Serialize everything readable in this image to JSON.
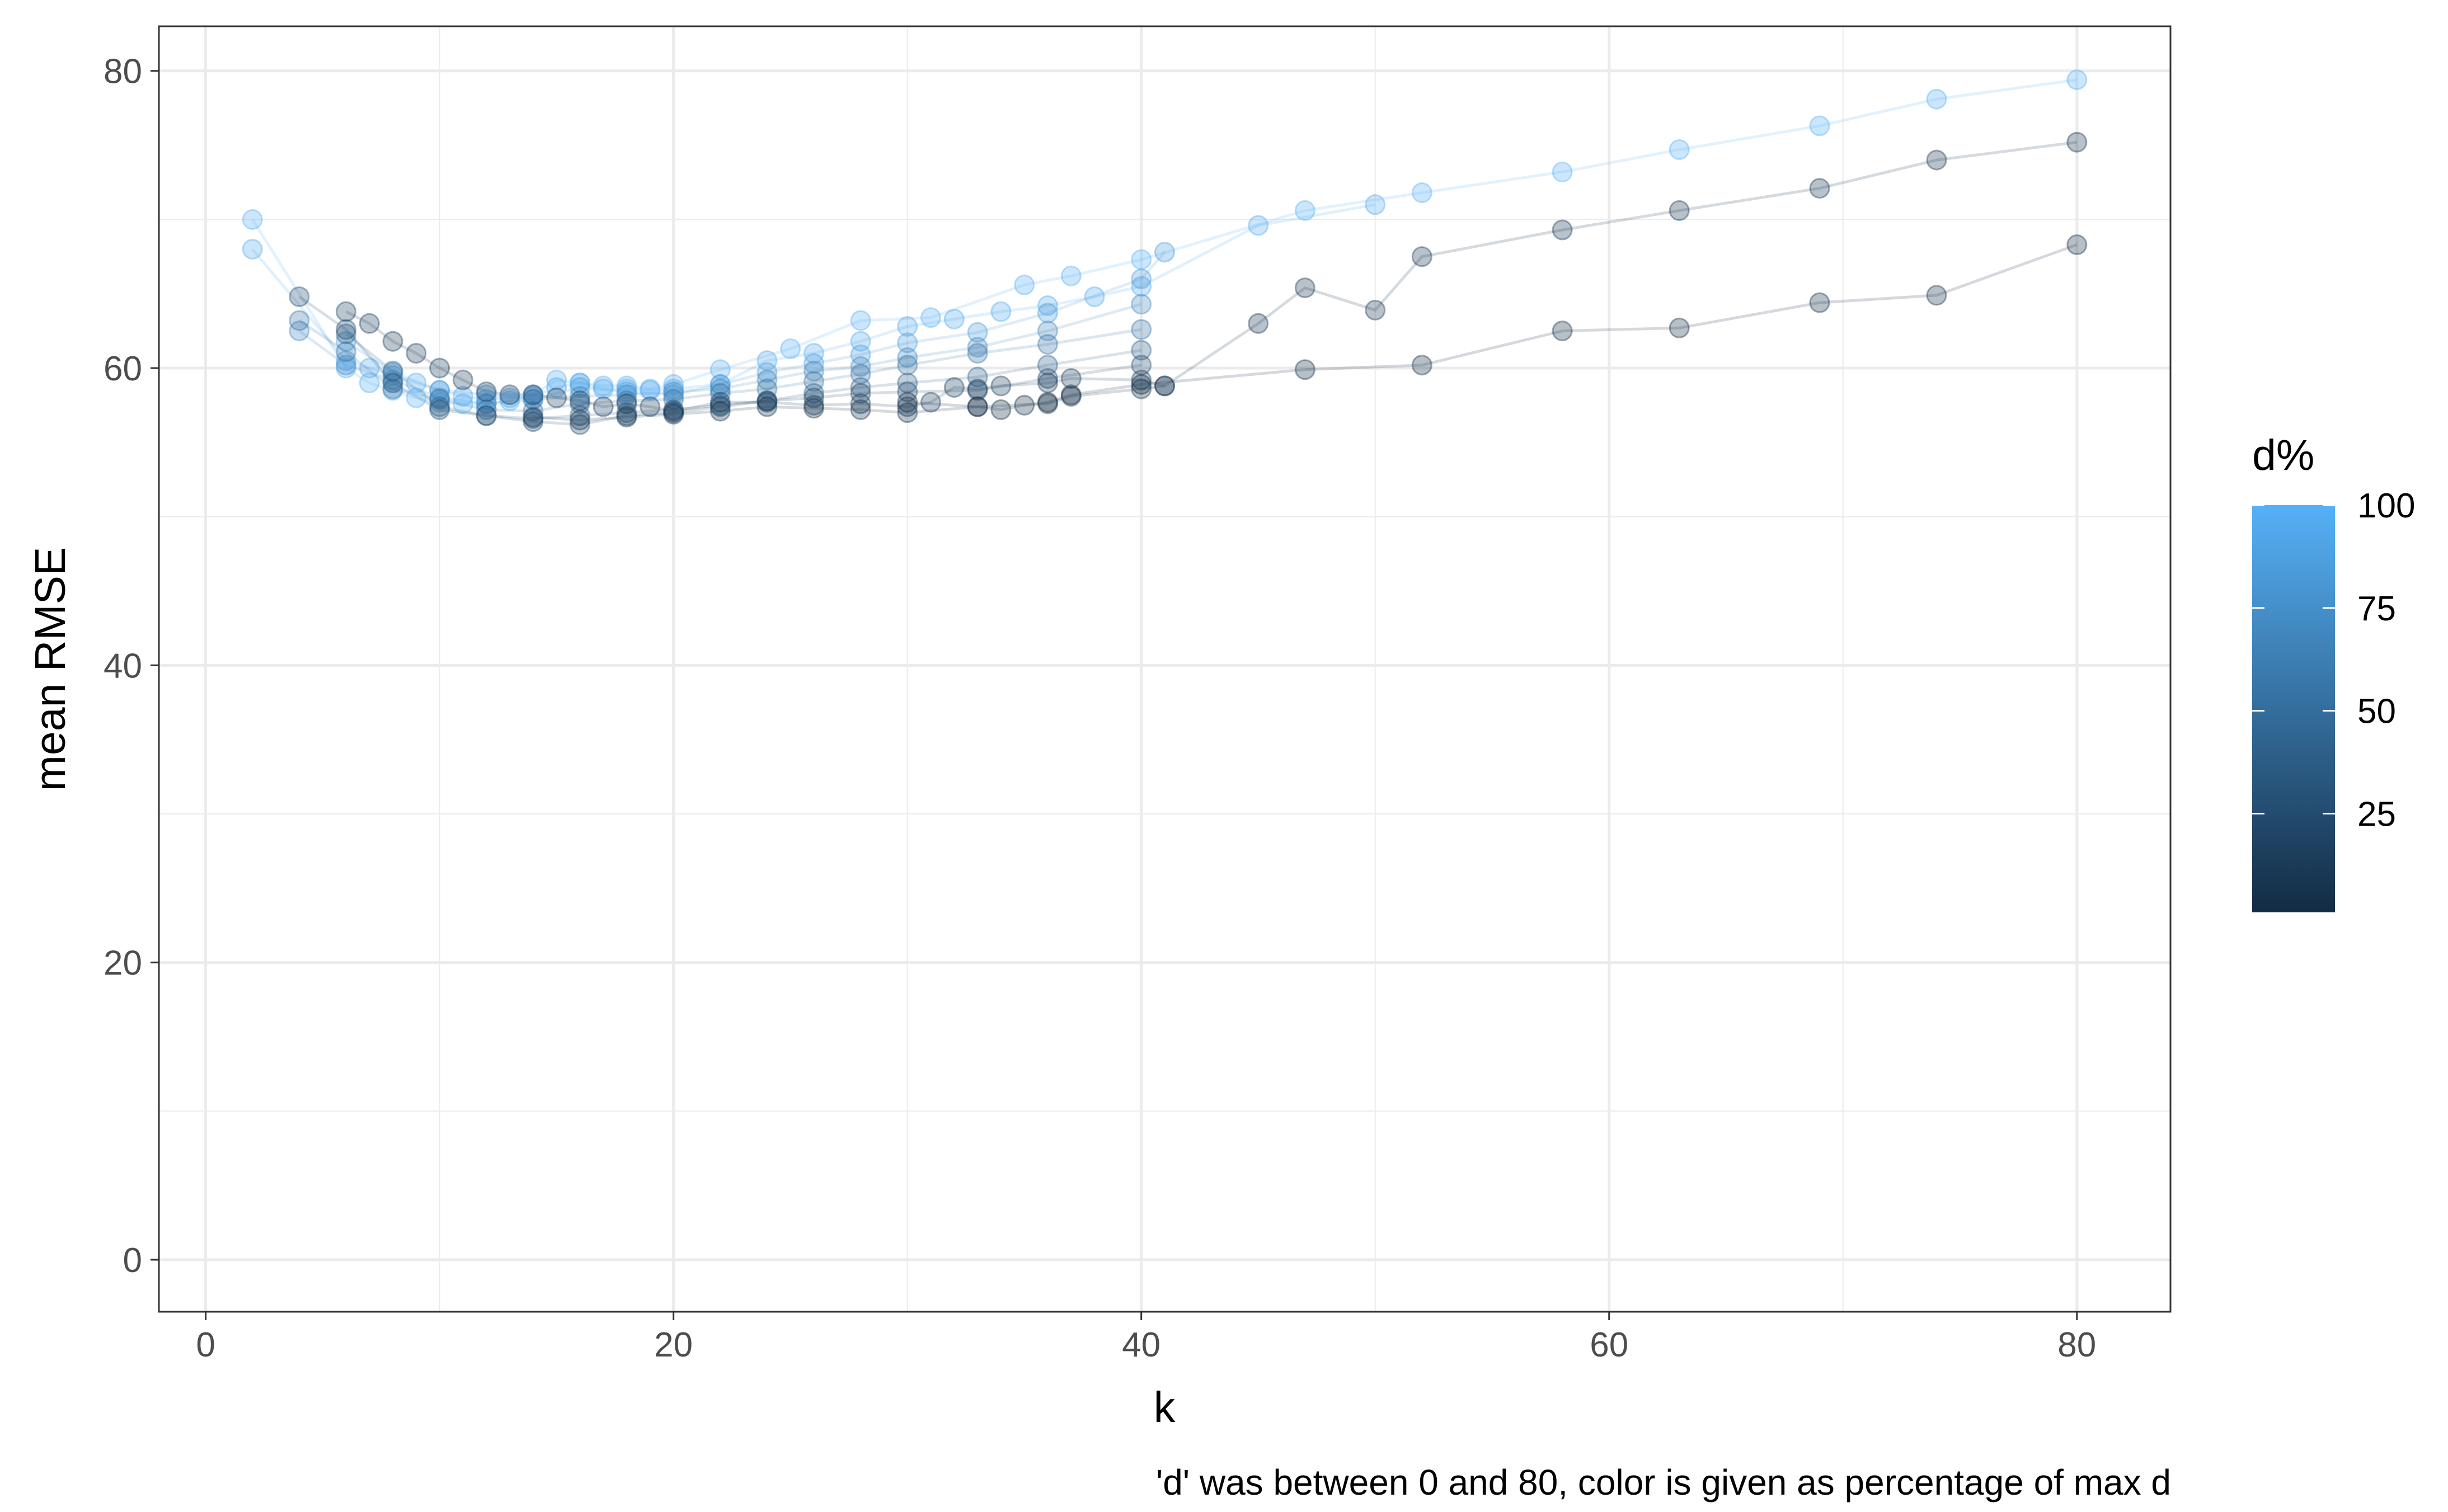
{
  "chart_data": {
    "type": "scatter",
    "title": "",
    "xlabel": "k",
    "ylabel": "mean RMSE",
    "caption": "'d' was between 0 and 80, color is given as percentage of max d",
    "xlim": [
      -2,
      84
    ],
    "ylim": [
      -3.5,
      83
    ],
    "x_ticks": [
      0,
      20,
      40,
      60,
      80
    ],
    "y_ticks": [
      0,
      20,
      40,
      60,
      80
    ],
    "grid": true,
    "point_alpha": 0.3,
    "legend": {
      "title": "d%",
      "position": "right",
      "ticks": [
        25,
        50,
        75,
        100
      ],
      "range": [
        1,
        100
      ],
      "color_low": "#132B43",
      "color_high": "#56B1F7"
    },
    "series": [
      {
        "d_pct": 100,
        "x": [
          2,
          6,
          7,
          8,
          9,
          10,
          11,
          12,
          13,
          14,
          15,
          16,
          17,
          18,
          19,
          20,
          22,
          25,
          28,
          31,
          35,
          37,
          40,
          47,
          52,
          58,
          63,
          69,
          74,
          80
        ],
        "y": [
          70,
          60,
          59,
          58.5,
          58,
          57.7,
          57.6,
          57.6,
          57.8,
          58.2,
          59.2,
          59,
          58.8,
          58.8,
          58.6,
          58.9,
          59.9,
          61.3,
          63.2,
          63.4,
          65.6,
          66.2,
          67.3,
          70.6,
          71.8,
          73.2,
          74.7,
          76.3,
          78.1,
          79.4
        ]
      },
      {
        "d_pct": 95,
        "x": [
          2,
          6,
          7,
          8,
          9,
          10,
          11,
          12,
          13,
          14,
          15,
          16,
          17,
          18,
          19,
          20,
          22,
          24,
          26,
          28,
          30,
          32,
          34,
          36,
          38,
          40,
          45,
          50
        ],
        "y": [
          68,
          60.5,
          60,
          59.5,
          59,
          58.5,
          58.1,
          57.9,
          58,
          58.1,
          58.7,
          59,
          58.6,
          58.6,
          58.5,
          58.6,
          58.9,
          60.5,
          61,
          61.8,
          62.8,
          63.3,
          63.8,
          64.2,
          64.8,
          65.5,
          69.6,
          71
        ]
      },
      {
        "d_pct": 85,
        "x": [
          6,
          8,
          10,
          12,
          14,
          16,
          18,
          20,
          22,
          24,
          26,
          28,
          30,
          33,
          36,
          40,
          41
        ],
        "y": [
          61.8,
          59.7,
          58.5,
          58.2,
          57.9,
          58.7,
          58.4,
          58.2,
          58.9,
          59.7,
          60.3,
          60.9,
          61.7,
          62.4,
          63.7,
          66,
          67.8
        ]
      },
      {
        "d_pct": 70,
        "x": [
          4,
          6,
          8,
          10,
          12,
          14,
          16,
          18,
          20,
          22,
          24,
          26,
          28,
          30,
          33,
          36,
          40
        ],
        "y": [
          62.5,
          60.2,
          59.2,
          58,
          57.6,
          57.9,
          58.1,
          58.2,
          58.4,
          58.6,
          59.2,
          59.8,
          60.1,
          60.7,
          61.4,
          62.5,
          64.3
        ]
      },
      {
        "d_pct": 55,
        "x": [
          4,
          6,
          8,
          10,
          12,
          14,
          16,
          18,
          20,
          22,
          24,
          26,
          28,
          30,
          33,
          36,
          40
        ],
        "y": [
          63.2,
          61.1,
          58.6,
          57.9,
          57.2,
          57.1,
          57.6,
          57.8,
          57.9,
          58.3,
          58.6,
          59.1,
          59.6,
          60.2,
          61,
          61.6,
          62.6
        ]
      },
      {
        "d_pct": 40,
        "x": [
          6,
          8,
          10,
          12,
          14,
          16,
          18,
          20,
          22,
          24,
          26,
          28,
          30,
          33,
          36,
          40
        ],
        "y": [
          62.3,
          59.8,
          57.4,
          56.8,
          56.6,
          56.8,
          57,
          57.2,
          57.5,
          57.8,
          58.3,
          58.7,
          59,
          59.4,
          60.2,
          61.2
        ]
      },
      {
        "d_pct": 25,
        "x": [
          4,
          6,
          8,
          10,
          12,
          14,
          16,
          18,
          20,
          22,
          24,
          26,
          28,
          30,
          33,
          36,
          40
        ],
        "y": [
          64.8,
          62.6,
          59,
          57.2,
          56.8,
          56.4,
          56.2,
          56.8,
          57,
          57.4,
          57.8,
          58,
          58.3,
          58.4,
          58.5,
          59.3,
          60.2
        ]
      },
      {
        "d_pct": 15,
        "x": [
          6,
          7,
          8,
          9,
          10,
          11,
          12,
          13,
          14,
          15,
          16,
          17,
          18,
          19,
          20,
          22,
          24,
          26,
          28,
          30,
          31,
          32,
          33,
          34,
          36,
          37,
          40,
          41
        ],
        "y": [
          63.8,
          63,
          61.8,
          61,
          60,
          59.2,
          58.4,
          58.2,
          58.2,
          58,
          57.8,
          57.4,
          57.6,
          57.4,
          57.1,
          57.7,
          57.7,
          57.5,
          57.6,
          57.4,
          57.7,
          58.7,
          58.6,
          58.8,
          59,
          59.3,
          59.2,
          58.8
        ]
      },
      {
        "d_pct": 8,
        "x": [
          14,
          16,
          18,
          20,
          22,
          24,
          26,
          28,
          30,
          33,
          36,
          37,
          40,
          41,
          45,
          47,
          50,
          52,
          58,
          63,
          69,
          74,
          80
        ],
        "y": [
          56.7,
          56.5,
          56.7,
          56.9,
          57.1,
          57.4,
          57.3,
          57.2,
          57,
          57.4,
          57.6,
          58.1,
          58.6,
          58.8,
          63,
          65.4,
          63.9,
          67.5,
          69.3,
          70.6,
          72.1,
          74,
          75.2
        ]
      },
      {
        "d_pct": 3,
        "x": [
          30,
          33,
          34,
          35,
          36,
          37,
          40,
          47,
          52,
          58,
          63,
          69,
          74,
          80
        ],
        "y": [
          57.7,
          57.4,
          57.2,
          57.5,
          57.7,
          58.2,
          58.9,
          59.9,
          60.2,
          62.5,
          62.7,
          64.4,
          64.9,
          68.3
        ]
      }
    ]
  }
}
